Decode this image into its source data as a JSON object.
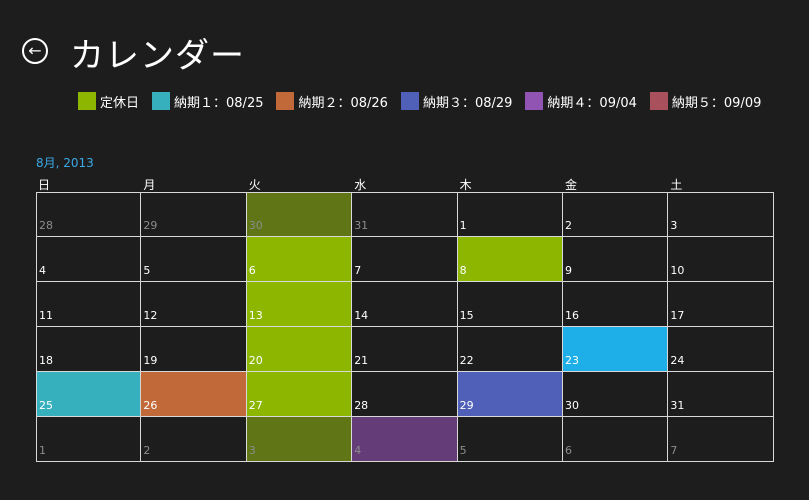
{
  "header": {
    "title": "カレンダー",
    "back_icon": "back-arrow-icon"
  },
  "legend": [
    {
      "label": "定休日",
      "color": "#8db600"
    },
    {
      "label": "納期１：08/25",
      "color": "#36b0bd"
    },
    {
      "label": "納期２：08/26",
      "color": "#c2693a"
    },
    {
      "label": "納期３：08/29",
      "color": "#5060b8"
    },
    {
      "label": "納期４：09/04",
      "color": "#9154b2"
    },
    {
      "label": "納期５：09/09",
      "color": "#a8505c"
    }
  ],
  "calendar": {
    "month_label": "8月, 2013",
    "weekdays": [
      "日",
      "月",
      "火",
      "水",
      "木",
      "金",
      "土"
    ],
    "weeks": [
      [
        {
          "day": "28",
          "other": true,
          "color": null
        },
        {
          "day": "29",
          "other": true,
          "color": null
        },
        {
          "day": "30",
          "other": true,
          "color": "#5f7516"
        },
        {
          "day": "31",
          "other": true,
          "color": null
        },
        {
          "day": "1",
          "other": false,
          "color": null
        },
        {
          "day": "2",
          "other": false,
          "color": null
        },
        {
          "day": "3",
          "other": false,
          "color": null
        }
      ],
      [
        {
          "day": "4",
          "other": false,
          "color": null
        },
        {
          "day": "5",
          "other": false,
          "color": null
        },
        {
          "day": "6",
          "other": false,
          "color": "#8db600"
        },
        {
          "day": "7",
          "other": false,
          "color": null
        },
        {
          "day": "8",
          "other": false,
          "color": "#8db600"
        },
        {
          "day": "9",
          "other": false,
          "color": null
        },
        {
          "day": "10",
          "other": false,
          "color": null
        }
      ],
      [
        {
          "day": "11",
          "other": false,
          "color": null
        },
        {
          "day": "12",
          "other": false,
          "color": null
        },
        {
          "day": "13",
          "other": false,
          "color": "#8db600"
        },
        {
          "day": "14",
          "other": false,
          "color": null
        },
        {
          "day": "15",
          "other": false,
          "color": null
        },
        {
          "day": "16",
          "other": false,
          "color": null
        },
        {
          "day": "17",
          "other": false,
          "color": null
        }
      ],
      [
        {
          "day": "18",
          "other": false,
          "color": null
        },
        {
          "day": "19",
          "other": false,
          "color": null
        },
        {
          "day": "20",
          "other": false,
          "color": "#8db600"
        },
        {
          "day": "21",
          "other": false,
          "color": null
        },
        {
          "day": "22",
          "other": false,
          "color": null
        },
        {
          "day": "23",
          "other": false,
          "color": "#1eaee8"
        },
        {
          "day": "24",
          "other": false,
          "color": null
        }
      ],
      [
        {
          "day": "25",
          "other": false,
          "color": "#36b0bd"
        },
        {
          "day": "26",
          "other": false,
          "color": "#c2693a"
        },
        {
          "day": "27",
          "other": false,
          "color": "#8db600"
        },
        {
          "day": "28",
          "other": false,
          "color": null
        },
        {
          "day": "29",
          "other": false,
          "color": "#5060b8"
        },
        {
          "day": "30",
          "other": false,
          "color": null
        },
        {
          "day": "31",
          "other": false,
          "color": null
        }
      ],
      [
        {
          "day": "1",
          "other": true,
          "color": null
        },
        {
          "day": "2",
          "other": true,
          "color": null
        },
        {
          "day": "3",
          "other": true,
          "color": "#5f7516"
        },
        {
          "day": "4",
          "other": true,
          "color": "#643c78"
        },
        {
          "day": "5",
          "other": true,
          "color": null
        },
        {
          "day": "6",
          "other": true,
          "color": null
        },
        {
          "day": "7",
          "other": true,
          "color": null
        }
      ]
    ]
  }
}
